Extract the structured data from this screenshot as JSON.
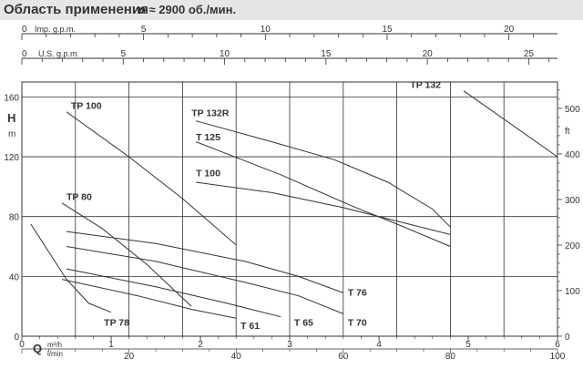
{
  "header": {
    "title": "Область применения",
    "subtitle": "n ≈ 2900 об./мин."
  },
  "colors": {
    "line": "#333333",
    "header_bg": "#e6e6e6"
  },
  "chart_data": {
    "type": "line",
    "xlabel_symbol": "Q",
    "xlabel_units": [
      "m³/h",
      "l/min"
    ],
    "ylabel_symbol": "H",
    "ylabel_unit": "m",
    "right_unit": "ft",
    "top_axes": [
      {
        "label": "Imp. g.p.m.",
        "ticks": [
          0,
          5,
          10,
          15,
          20
        ]
      },
      {
        "label": "U.S. g.p.m.",
        "ticks": [
          0,
          5,
          10,
          15,
          20,
          25
        ]
      }
    ],
    "bottom_axes": [
      {
        "label": "m³/h",
        "ticks": [
          0,
          1,
          2,
          3,
          4,
          5,
          6
        ]
      },
      {
        "label": "l/min",
        "ticks": [
          20,
          40,
          60,
          80,
          100
        ]
      }
    ],
    "left_ticks": [
      0,
      40,
      80,
      120,
      160
    ],
    "right_ticks": [
      0,
      100,
      200,
      300,
      400,
      500
    ],
    "xlim": [
      0,
      6
    ],
    "ylim": [
      0,
      170
    ],
    "grid": true,
    "series": [
      {
        "name": "TP 132",
        "points": [
          [
            4.95,
            164
          ],
          [
            6.0,
            120
          ]
        ]
      },
      {
        "name": "TP 132R",
        "points": [
          [
            1.95,
            144
          ],
          [
            2.8,
            130
          ],
          [
            3.5,
            118
          ],
          [
            4.1,
            103
          ],
          [
            4.6,
            85
          ],
          [
            4.8,
            73
          ]
        ]
      },
      {
        "name": "T 125",
        "points": [
          [
            1.95,
            130
          ],
          [
            2.9,
            108
          ],
          [
            3.7,
            87
          ],
          [
            4.2,
            75
          ],
          [
            4.8,
            60
          ]
        ]
      },
      {
        "name": "T 100",
        "points": [
          [
            1.95,
            103
          ],
          [
            2.8,
            96
          ],
          [
            3.6,
            86
          ],
          [
            4.2,
            77
          ],
          [
            4.8,
            68
          ]
        ]
      },
      {
        "name": "TP 100",
        "points": [
          [
            0.5,
            150
          ],
          [
            1.2,
            120
          ],
          [
            1.8,
            92
          ],
          [
            2.4,
            61
          ]
        ]
      },
      {
        "name": "TP 80",
        "points": [
          [
            0.45,
            89
          ],
          [
            0.9,
            72
          ],
          [
            1.4,
            48
          ],
          [
            1.9,
            20
          ]
        ]
      },
      {
        "name": "T 76",
        "points": [
          [
            0.5,
            70
          ],
          [
            1.5,
            62
          ],
          [
            2.5,
            50
          ],
          [
            3.1,
            40
          ],
          [
            3.6,
            29
          ]
        ]
      },
      {
        "name": "T 70",
        "points": [
          [
            0.5,
            60
          ],
          [
            1.5,
            50
          ],
          [
            2.5,
            36
          ],
          [
            3.1,
            27
          ],
          [
            3.6,
            15
          ]
        ]
      },
      {
        "name": "T 65",
        "points": [
          [
            0.5,
            45
          ],
          [
            1.5,
            33
          ],
          [
            2.3,
            22
          ],
          [
            2.9,
            13
          ]
        ]
      },
      {
        "name": "T 61",
        "points": [
          [
            0.45,
            38
          ],
          [
            1.3,
            27
          ],
          [
            1.9,
            18
          ],
          [
            2.4,
            12
          ]
        ]
      },
      {
        "name": "TP 78",
        "points": [
          [
            0.1,
            75
          ],
          [
            0.5,
            38
          ],
          [
            0.75,
            22
          ],
          [
            1.0,
            16
          ]
        ]
      }
    ],
    "annotations": [
      {
        "text": "TP 132",
        "x": 4.35,
        "y": 166
      },
      {
        "text": "TP 132R",
        "x": 1.9,
        "y": 147
      },
      {
        "text": "T 125",
        "x": 1.95,
        "y": 131
      },
      {
        "text": "T 100",
        "x": 1.95,
        "y": 107
      },
      {
        "text": "TP 100",
        "x": 0.55,
        "y": 152
      },
      {
        "text": "TP 80",
        "x": 0.5,
        "y": 91
      },
      {
        "text": "T 76",
        "x": 3.65,
        "y": 27
      },
      {
        "text": "T 70",
        "x": 3.65,
        "y": 7
      },
      {
        "text": "T 65",
        "x": 3.05,
        "y": 7
      },
      {
        "text": "T 61",
        "x": 2.45,
        "y": 5
      },
      {
        "text": "TP 78",
        "x": 0.92,
        "y": 7
      }
    ]
  }
}
